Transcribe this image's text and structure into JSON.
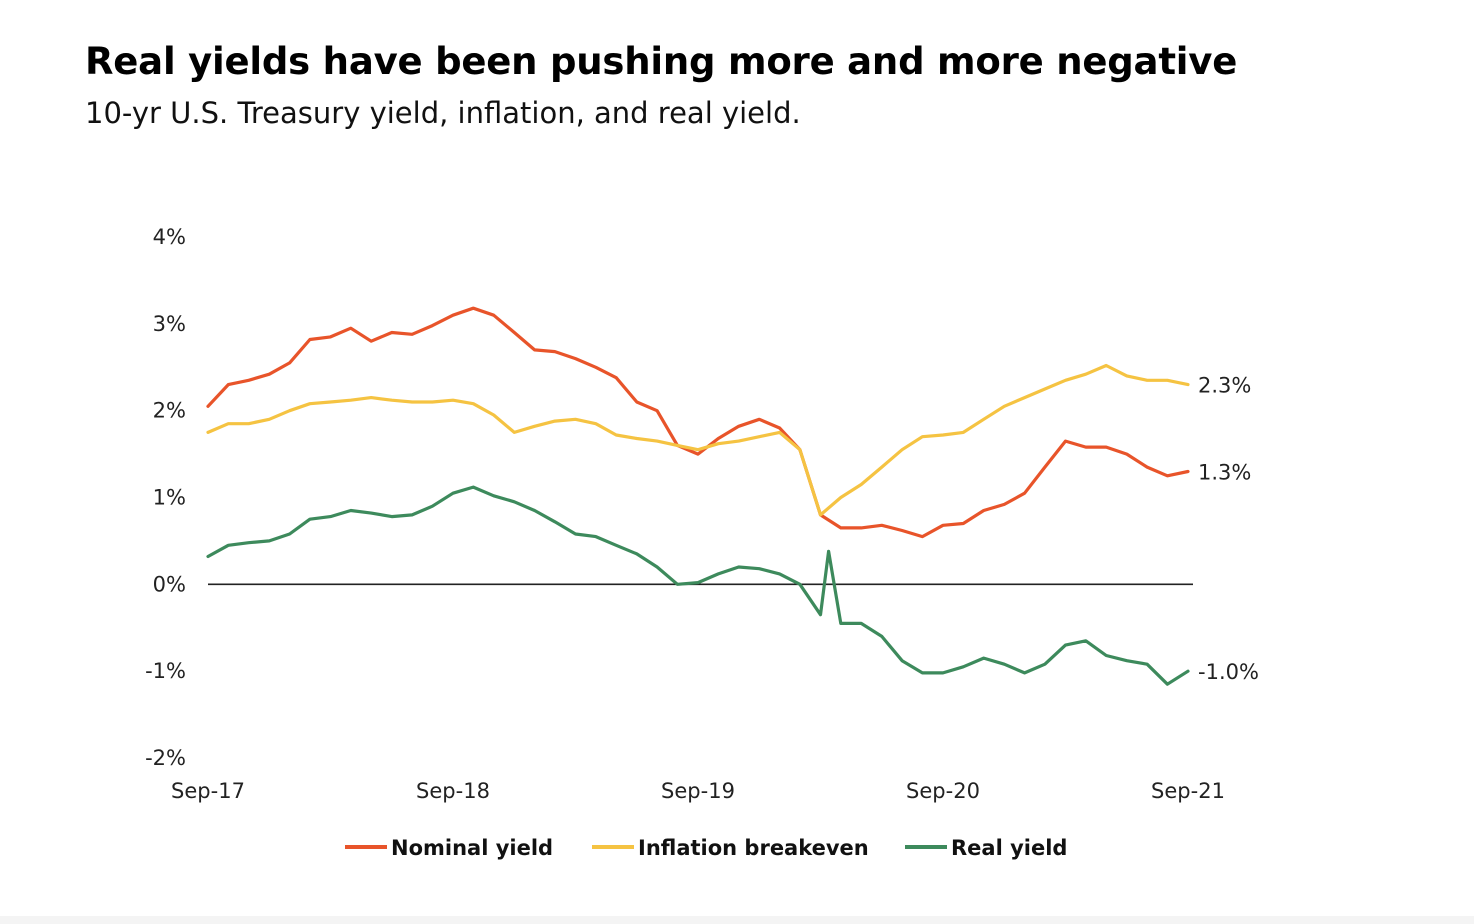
{
  "chart_data": {
    "type": "line",
    "title": "Real yields have been pushing more and more negative",
    "subtitle": "10-yr U.S. Treasury yield, inflation, and real yield.",
    "xlabel": "",
    "ylabel": "",
    "ylim": [
      -2,
      4
    ],
    "xlim": [
      2017.667,
      2021.667
    ],
    "y_ticks": [
      "4%",
      "3%",
      "2%",
      "1%",
      "0%",
      "-1%",
      "-2%"
    ],
    "y_tick_values": [
      4,
      3,
      2,
      1,
      0,
      -1,
      -2
    ],
    "x_ticks": [
      "Sep-17",
      "Sep-18",
      "Sep-19",
      "Sep-20",
      "Sep-21"
    ],
    "x_tick_values": [
      2017.667,
      2018.667,
      2019.667,
      2020.667,
      2021.667
    ],
    "zero_line": true,
    "legend_position": "bottom-center",
    "series": [
      {
        "name": "Nominal yield",
        "color": "#e8542a",
        "end_label": "1.3%",
        "points": [
          [
            2017.667,
            2.05
          ],
          [
            2017.75,
            2.3
          ],
          [
            2017.833,
            2.35
          ],
          [
            2017.917,
            2.42
          ],
          [
            2018.0,
            2.55
          ],
          [
            2018.083,
            2.82
          ],
          [
            2018.167,
            2.85
          ],
          [
            2018.25,
            2.95
          ],
          [
            2018.333,
            2.8
          ],
          [
            2018.417,
            2.9
          ],
          [
            2018.5,
            2.88
          ],
          [
            2018.583,
            2.98
          ],
          [
            2018.667,
            3.1
          ],
          [
            2018.75,
            3.18
          ],
          [
            2018.833,
            3.1
          ],
          [
            2018.917,
            2.9
          ],
          [
            2019.0,
            2.7
          ],
          [
            2019.083,
            2.68
          ],
          [
            2019.167,
            2.6
          ],
          [
            2019.25,
            2.5
          ],
          [
            2019.333,
            2.38
          ],
          [
            2019.417,
            2.1
          ],
          [
            2019.5,
            2.0
          ],
          [
            2019.583,
            1.6
          ],
          [
            2019.667,
            1.5
          ],
          [
            2019.75,
            1.68
          ],
          [
            2019.833,
            1.82
          ],
          [
            2019.917,
            1.9
          ],
          [
            2020.0,
            1.8
          ],
          [
            2020.083,
            1.55
          ],
          [
            2020.167,
            0.8
          ],
          [
            2020.25,
            0.65
          ],
          [
            2020.333,
            0.65
          ],
          [
            2020.417,
            0.68
          ],
          [
            2020.5,
            0.62
          ],
          [
            2020.583,
            0.55
          ],
          [
            2020.667,
            0.68
          ],
          [
            2020.75,
            0.7
          ],
          [
            2020.833,
            0.85
          ],
          [
            2020.917,
            0.92
          ],
          [
            2021.0,
            1.05
          ],
          [
            2021.083,
            1.35
          ],
          [
            2021.167,
            1.65
          ],
          [
            2021.25,
            1.58
          ],
          [
            2021.333,
            1.58
          ],
          [
            2021.417,
            1.5
          ],
          [
            2021.5,
            1.35
          ],
          [
            2021.583,
            1.25
          ],
          [
            2021.667,
            1.3
          ]
        ]
      },
      {
        "name": "Inflation breakeven",
        "color": "#f5c342",
        "end_label": "2.3%",
        "points": [
          [
            2017.667,
            1.75
          ],
          [
            2017.75,
            1.85
          ],
          [
            2017.833,
            1.85
          ],
          [
            2017.917,
            1.9
          ],
          [
            2018.0,
            2.0
          ],
          [
            2018.083,
            2.08
          ],
          [
            2018.167,
            2.1
          ],
          [
            2018.25,
            2.12
          ],
          [
            2018.333,
            2.15
          ],
          [
            2018.417,
            2.12
          ],
          [
            2018.5,
            2.1
          ],
          [
            2018.583,
            2.1
          ],
          [
            2018.667,
            2.12
          ],
          [
            2018.75,
            2.08
          ],
          [
            2018.833,
            1.95
          ],
          [
            2018.917,
            1.75
          ],
          [
            2019.0,
            1.82
          ],
          [
            2019.083,
            1.88
          ],
          [
            2019.167,
            1.9
          ],
          [
            2019.25,
            1.85
          ],
          [
            2019.333,
            1.72
          ],
          [
            2019.417,
            1.68
          ],
          [
            2019.5,
            1.65
          ],
          [
            2019.583,
            1.6
          ],
          [
            2019.667,
            1.55
          ],
          [
            2019.75,
            1.62
          ],
          [
            2019.833,
            1.65
          ],
          [
            2019.917,
            1.7
          ],
          [
            2020.0,
            1.75
          ],
          [
            2020.083,
            1.55
          ],
          [
            2020.167,
            0.8
          ],
          [
            2020.25,
            1.0
          ],
          [
            2020.333,
            1.15
          ],
          [
            2020.417,
            1.35
          ],
          [
            2020.5,
            1.55
          ],
          [
            2020.583,
            1.7
          ],
          [
            2020.667,
            1.72
          ],
          [
            2020.75,
            1.75
          ],
          [
            2020.833,
            1.9
          ],
          [
            2020.917,
            2.05
          ],
          [
            2021.0,
            2.15
          ],
          [
            2021.083,
            2.25
          ],
          [
            2021.167,
            2.35
          ],
          [
            2021.25,
            2.42
          ],
          [
            2021.333,
            2.52
          ],
          [
            2021.417,
            2.4
          ],
          [
            2021.5,
            2.35
          ],
          [
            2021.583,
            2.35
          ],
          [
            2021.667,
            2.3
          ]
        ]
      },
      {
        "name": "Real yield",
        "color": "#3d8a5c",
        "end_label": "-1.0%",
        "points": [
          [
            2017.667,
            0.32
          ],
          [
            2017.75,
            0.45
          ],
          [
            2017.833,
            0.48
          ],
          [
            2017.917,
            0.5
          ],
          [
            2018.0,
            0.58
          ],
          [
            2018.083,
            0.75
          ],
          [
            2018.167,
            0.78
          ],
          [
            2018.25,
            0.85
          ],
          [
            2018.333,
            0.82
          ],
          [
            2018.417,
            0.78
          ],
          [
            2018.5,
            0.8
          ],
          [
            2018.583,
            0.9
          ],
          [
            2018.667,
            1.05
          ],
          [
            2018.75,
            1.12
          ],
          [
            2018.833,
            1.02
          ],
          [
            2018.917,
            0.95
          ],
          [
            2019.0,
            0.85
          ],
          [
            2019.083,
            0.72
          ],
          [
            2019.167,
            0.58
          ],
          [
            2019.25,
            0.55
          ],
          [
            2019.333,
            0.45
          ],
          [
            2019.417,
            0.35
          ],
          [
            2019.5,
            0.2
          ],
          [
            2019.583,
            0.0
          ],
          [
            2019.667,
            0.02
          ],
          [
            2019.75,
            0.12
          ],
          [
            2019.833,
            0.2
          ],
          [
            2019.917,
            0.18
          ],
          [
            2020.0,
            0.12
          ],
          [
            2020.083,
            0.0
          ],
          [
            2020.167,
            -0.35
          ],
          [
            2020.2,
            0.38
          ],
          [
            2020.25,
            -0.45
          ],
          [
            2020.333,
            -0.45
          ],
          [
            2020.417,
            -0.6
          ],
          [
            2020.5,
            -0.88
          ],
          [
            2020.583,
            -1.02
          ],
          [
            2020.667,
            -1.02
          ],
          [
            2020.75,
            -0.95
          ],
          [
            2020.833,
            -0.85
          ],
          [
            2020.917,
            -0.92
          ],
          [
            2021.0,
            -1.02
          ],
          [
            2021.083,
            -0.92
          ],
          [
            2021.167,
            -0.7
          ],
          [
            2021.25,
            -0.65
          ],
          [
            2021.333,
            -0.82
          ],
          [
            2021.417,
            -0.88
          ],
          [
            2021.5,
            -0.92
          ],
          [
            2021.583,
            -1.15
          ],
          [
            2021.667,
            -1.0
          ]
        ]
      }
    ]
  }
}
